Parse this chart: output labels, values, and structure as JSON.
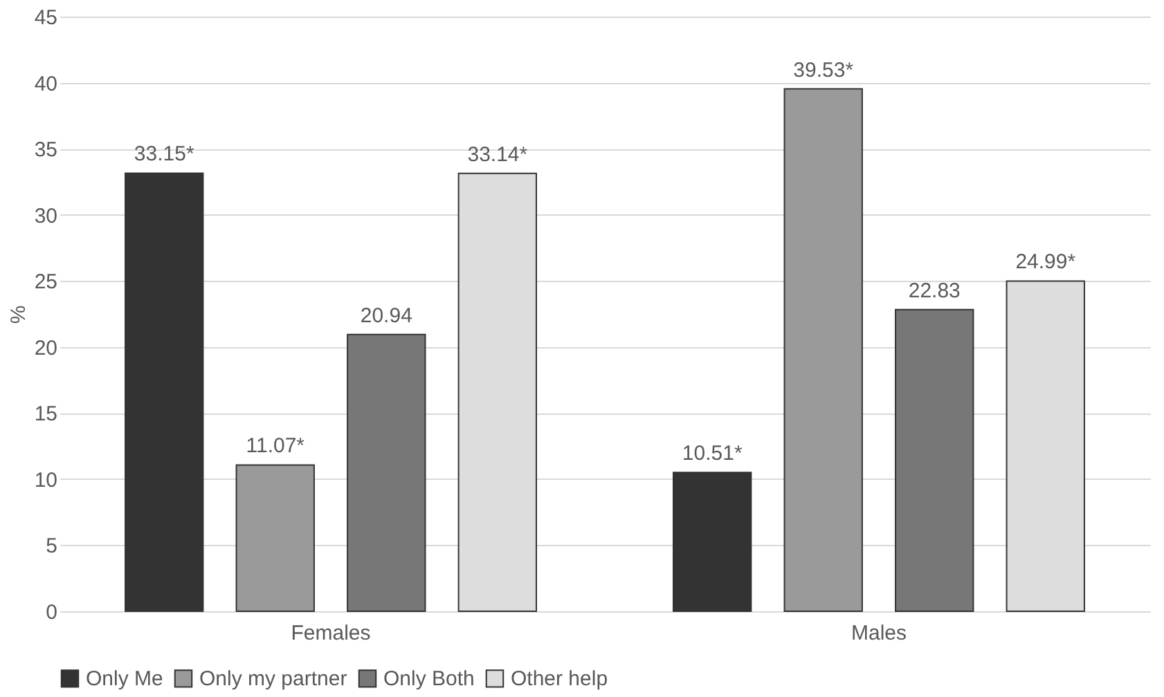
{
  "chart_data": {
    "type": "bar",
    "ylabel": "%",
    "categories": [
      "Females",
      "Males"
    ],
    "series": [
      {
        "name": "Only Me",
        "color": "#333333",
        "values": [
          33.15,
          10.51
        ],
        "value_labels": [
          "33.15*",
          "10.51*"
        ]
      },
      {
        "name": "Only my partner",
        "color": "#9a9a9a",
        "values": [
          11.07,
          39.53
        ],
        "value_labels": [
          "11.07*",
          "39.53*"
        ]
      },
      {
        "name": "Only Both",
        "color": "#777777",
        "values": [
          20.94,
          22.83
        ],
        "value_labels": [
          "20.94",
          "22.83"
        ]
      },
      {
        "name": "Other help",
        "color": "#dddddd",
        "values": [
          33.14,
          24.99
        ],
        "value_labels": [
          "33.14*",
          "24.99*"
        ]
      }
    ],
    "ylim": [
      0,
      45
    ],
    "yticks": [
      0,
      5,
      10,
      15,
      20,
      25,
      30,
      35,
      40,
      45
    ],
    "grid": "y",
    "legend": "bottom"
  }
}
